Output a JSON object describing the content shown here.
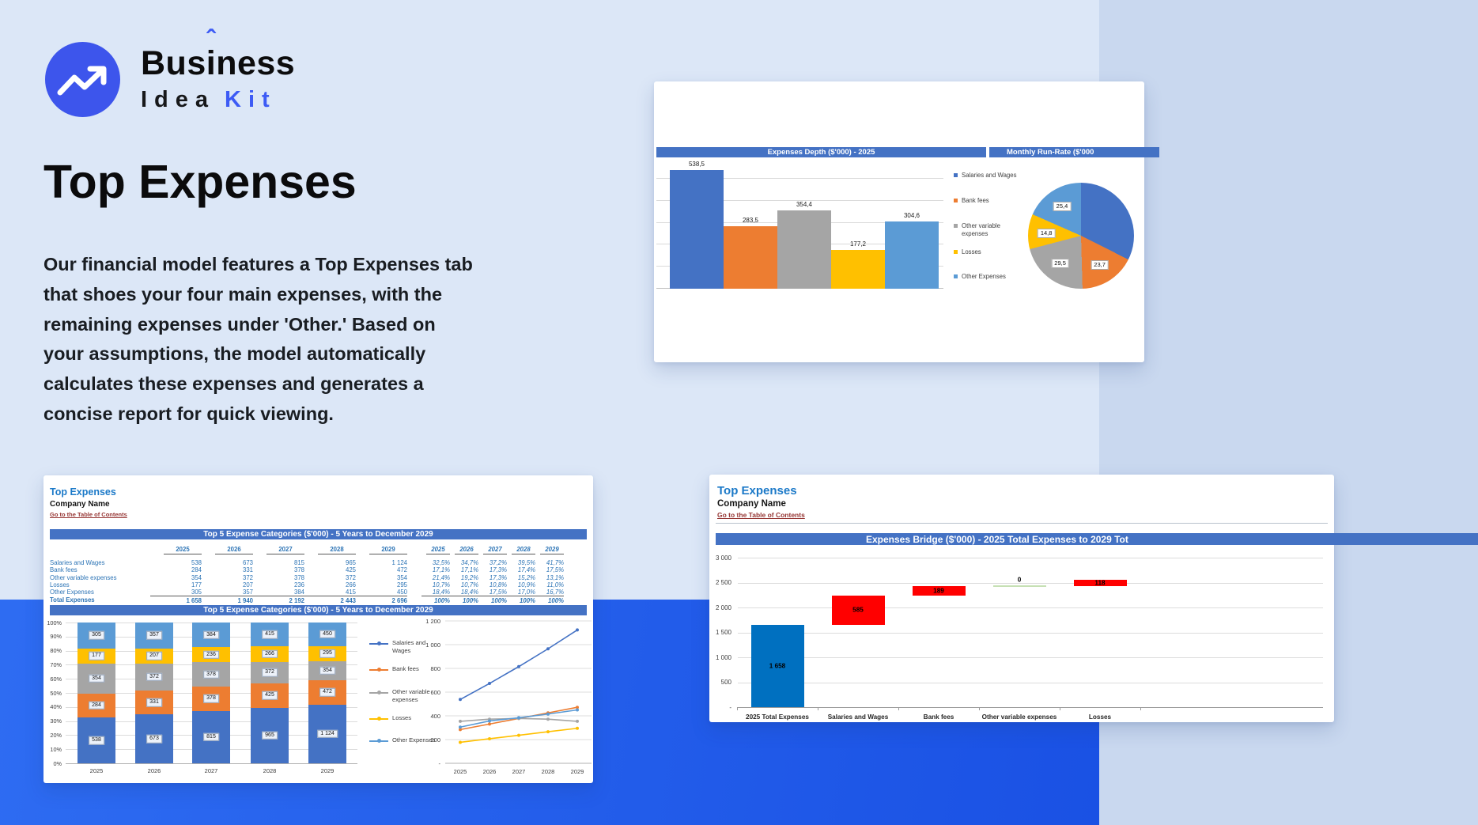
{
  "page": {
    "background": "#dce7f7",
    "band_gradient_start": "#2e6cf2",
    "band_gradient_end": "#1a51e4"
  },
  "logo": {
    "word1_pre": "Bus",
    "word1_i": "i",
    "word1_caret": "ˆ",
    "word1_post": "ness",
    "word2": "Idea",
    "word3": "Kit",
    "circle_color": "#3d55ec",
    "accent_color": "#3d5bf5"
  },
  "hero": {
    "title": "Top Expenses",
    "paragraph": "Our financial model features a Top Expenses tab\nthat shoes your four main expenses, with the\nremaining expenses under 'Other.' Based on\nyour assumptions, the model automatically\ncalculates these expenses and generates a\nconcise report for quick viewing."
  },
  "palette": {
    "s1": "#4472C4",
    "s2": "#ED7D31",
    "s3": "#A5A5A5",
    "s4": "#FFC000",
    "s5": "#5B9BD5",
    "header_bar": "#4472C4",
    "red": "#FF0000",
    "bridge_blue": "#0070C0",
    "bridge_green": "#C6E0B4",
    "link_color": "#963634",
    "sheet_title_color": "#1B79C8",
    "table_text_color": "#2E75B6"
  },
  "series_names": [
    "Salaries and Wages",
    "Bank fees",
    "Other variable expenses",
    "Losses",
    "Other Expenses"
  ],
  "depth_card": {
    "title": "Expenses Depth ($'000) - 2025",
    "title2": "Monthly Run-Rate ($'000",
    "bar_chart": {
      "type": "bar",
      "categories": [
        "Salaries and Wages",
        "Bank fees",
        "Other variable expenses",
        "Losses",
        "Other Expenses"
      ],
      "values": [
        538.5,
        283.5,
        354.4,
        177.2,
        304.6
      ],
      "labels": [
        "538,5",
        "283,5",
        "354,4",
        "177,2",
        "304,6"
      ],
      "ylim": [
        0,
        600
      ],
      "grid_step": 100
    },
    "pie_chart": {
      "type": "pie",
      "values": [
        44.8,
        23.7,
        29.5,
        14.8,
        25.4
      ],
      "labels": [
        null,
        "23,7",
        "29,5",
        "14,8",
        "25,4"
      ]
    }
  },
  "sheet1": {
    "title": "Top Expenses",
    "company": "Company Name",
    "link": "Go to the Table of Contents",
    "table_header": "Top 5 Expense Categories ($'000) - 5 Years to December 2029",
    "years": [
      "2025",
      "2026",
      "2027",
      "2028",
      "2029"
    ],
    "rows": [
      {
        "label": "Salaries and Wages",
        "values": [
          "538",
          "673",
          "815",
          "965",
          "1 124"
        ],
        "pcts": [
          "32,5%",
          "34,7%",
          "37,2%",
          "39,5%",
          "41,7%"
        ]
      },
      {
        "label": "Bank fees",
        "values": [
          "284",
          "331",
          "378",
          "425",
          "472"
        ],
        "pcts": [
          "17,1%",
          "17,1%",
          "17,3%",
          "17,4%",
          "17,5%"
        ]
      },
      {
        "label": "Other variable expenses",
        "values": [
          "354",
          "372",
          "378",
          "372",
          "354"
        ],
        "pcts": [
          "21,4%",
          "19,2%",
          "17,3%",
          "15,2%",
          "13,1%"
        ]
      },
      {
        "label": "Losses",
        "values": [
          "177",
          "207",
          "236",
          "266",
          "295"
        ],
        "pcts": [
          "10,7%",
          "10,7%",
          "10,8%",
          "10,9%",
          "11,0%"
        ]
      },
      {
        "label": "Other Expenses",
        "values": [
          "305",
          "357",
          "384",
          "415",
          "450"
        ],
        "pcts": [
          "18,4%",
          "18,4%",
          "17,5%",
          "17,0%",
          "16,7%"
        ]
      }
    ],
    "total": {
      "label": "Total Expenses",
      "values": [
        "1 658",
        "1 940",
        "2 192",
        "2 443",
        "2 696"
      ],
      "pcts": [
        "100%",
        "100%",
        "100%",
        "100%",
        "100%"
      ]
    },
    "chart_header": "Top 5 Expense Categories ($'000) - 5 Years to December 2029",
    "stacked_chart": {
      "type": "bar-stacked",
      "categories": [
        "2025",
        "2026",
        "2027",
        "2028",
        "2029"
      ],
      "yticks": [
        "100%",
        "90%",
        "80%",
        "70%",
        "60%",
        "50%",
        "40%",
        "30%",
        "20%",
        "10%",
        "0%"
      ],
      "series": [
        {
          "name": "Salaries and Wages",
          "values": [
            538,
            673,
            815,
            965,
            1124
          ],
          "labels": [
            "538",
            "673",
            "815",
            "965",
            "1 124"
          ]
        },
        {
          "name": "Bank fees",
          "values": [
            284,
            331,
            378,
            425,
            472
          ],
          "labels": [
            "284",
            "331",
            "378",
            "425",
            "472"
          ]
        },
        {
          "name": "Other variable expenses",
          "values": [
            354,
            372,
            378,
            372,
            354
          ],
          "labels": [
            "354",
            "372",
            "378",
            "372",
            "354"
          ]
        },
        {
          "name": "Losses",
          "values": [
            177,
            207,
            236,
            266,
            295
          ],
          "labels": [
            "177",
            "207",
            "236",
            "266",
            "295"
          ]
        },
        {
          "name": "Other Expenses",
          "values": [
            305,
            357,
            384,
            415,
            450
          ],
          "labels": [
            "305",
            "357",
            "384",
            "415",
            "450"
          ]
        }
      ]
    },
    "line_chart": {
      "type": "line",
      "categories": [
        "2025",
        "2026",
        "2027",
        "2028",
        "2029"
      ],
      "yticks": [
        "1 200",
        "1 000",
        "800",
        "600",
        "400",
        "200",
        "-"
      ],
      "ylim": [
        0,
        1200
      ]
    }
  },
  "sheet2": {
    "title": "Top Expenses",
    "company": "Company Name",
    "link": "Go to the Table of Contents",
    "chart_header": "Expenses Bridge ($'000) - 2025 Total Expenses to 2029 Tot",
    "waterfall": {
      "type": "waterfall",
      "yticks": [
        "3 000",
        "2 500",
        "2 000",
        "1 500",
        "1 000",
        "500",
        "-"
      ],
      "ylim": [
        0,
        3000
      ],
      "categories": [
        "2025 Total Expenses",
        "Salaries and Wages",
        "Bank fees",
        "Other variable expenses",
        "Losses"
      ],
      "bars": [
        {
          "label": "1 658",
          "base": 0,
          "value": 1658,
          "color_key": "bridge_blue"
        },
        {
          "label": "585",
          "base": 1658,
          "value": 585,
          "color_key": "red"
        },
        {
          "label": "189",
          "base": 2243,
          "value": 189,
          "color_key": "red"
        },
        {
          "label": "0",
          "base": 2432,
          "value": 0,
          "color_key": "bridge_green",
          "style": "line"
        },
        {
          "label": "118",
          "base": 2432,
          "value": 118,
          "color_key": "red"
        }
      ]
    }
  }
}
